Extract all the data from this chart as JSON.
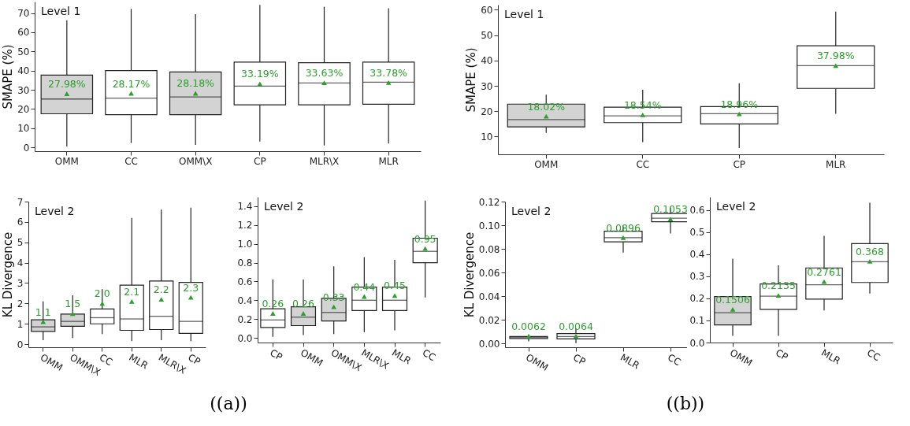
{
  "chart_data": [
    {
      "type": "box",
      "title": "Level 1",
      "ylabel": "SMAPE (%)",
      "categories": [
        "OMM",
        "CC",
        "OMM\\X",
        "CP",
        "MLR\\X",
        "MLR"
      ],
      "ylim": [
        -2,
        76
      ],
      "yticks": [
        0,
        10,
        20,
        30,
        40,
        50,
        60,
        70
      ],
      "annotations": [
        "((a))"
      ],
      "series": [
        {
          "colors": [
            "#d3d3d3",
            "#ffffff",
            "#d3d3d3",
            "#ffffff",
            "#ffffff",
            "#ffffff"
          ],
          "boxes": [
            {
              "low": 0.5,
              "q1": 17.5,
              "median": 25.2,
              "q3": 37.7,
              "high": 66.3
            },
            {
              "low": 2.3,
              "q1": 17,
              "median": 25.7,
              "q3": 40,
              "high": 72.2
            },
            {
              "low": 1.3,
              "q1": 17,
              "median": 26.3,
              "q3": 39.3,
              "high": 69.4
            },
            {
              "low": 3,
              "q1": 22.2,
              "median": 31.9,
              "q3": 44.4,
              "high": 74.3
            },
            {
              "low": 1,
              "q1": 22.2,
              "median": 33.6,
              "q3": 44.1,
              "high": 73.3
            },
            {
              "low": 2,
              "q1": 22.5,
              "median": 34,
              "q3": 44.4,
              "high": 72.5
            }
          ]
        },
        {
          "type": "scatter",
          "marker": "triangle",
          "color": "#2ca02c",
          "x": [
            "OMM",
            "CC",
            "OMM\\X",
            "CP",
            "MLR\\X",
            "MLR"
          ],
          "values": [
            27.98,
            28.17,
            28.18,
            33.19,
            33.63,
            33.78
          ],
          "value_labels": [
            "27.98%",
            "28.17%",
            "28.18%",
            "33.19%",
            "33.63%",
            "33.78%"
          ]
        }
      ]
    },
    {
      "type": "box",
      "title": "Level 2",
      "ylabel": "KL Divergence",
      "categories": [
        "OMM",
        "OMM\\X",
        "CC",
        "MLR",
        "MLR\\X",
        "CP"
      ],
      "ylim": [
        -0.15,
        7
      ],
      "yticks": [
        0,
        1,
        2,
        3,
        4,
        5,
        6,
        7
      ],
      "series": [
        {
          "colors": [
            "#d3d3d3",
            "#d3d3d3",
            "#ffffff",
            "#ffffff",
            "#ffffff",
            "#ffffff"
          ],
          "boxes": [
            {
              "low": 0.2,
              "q1": 0.63,
              "median": 0.85,
              "q3": 1.2,
              "high": 2.1
            },
            {
              "low": 0.3,
              "q1": 0.88,
              "median": 1.12,
              "q3": 1.48,
              "high": 2.4
            },
            {
              "low": 0.5,
              "q1": 1,
              "median": 1.3,
              "q3": 1.73,
              "high": 2.7
            },
            {
              "low": 0.15,
              "q1": 0.68,
              "median": 1.24,
              "q3": 2.9,
              "high": 6.2
            },
            {
              "low": 0.2,
              "q1": 0.72,
              "median": 1.37,
              "q3": 3.1,
              "high": 6.6
            },
            {
              "low": 0.15,
              "q1": 0.53,
              "median": 1.12,
              "q3": 3.03,
              "high": 6.7
            }
          ]
        },
        {
          "type": "scatter",
          "marker": "triangle",
          "color": "#2ca02c",
          "x": [
            "OMM",
            "OMM\\X",
            "CC",
            "MLR",
            "MLR\\X",
            "CP"
          ],
          "values": [
            1.1,
            1.5,
            2.0,
            2.1,
            2.2,
            2.3
          ],
          "value_labels": [
            "1.1",
            "1.5",
            "2.0",
            "2.1",
            "2.2",
            "2.3"
          ]
        }
      ]
    },
    {
      "type": "box",
      "title": "Level 2",
      "categories": [
        "CP",
        "OMM",
        "OMM\\X",
        "MLR\\X",
        "MLR",
        "CC"
      ],
      "ylim": [
        -0.05,
        1.5
      ],
      "yticks": [
        {
          "value": 0,
          "label": "0.0"
        },
        0.2,
        0.4,
        0.6,
        0.8,
        {
          "value": 1,
          "label": "1.0"
        },
        1.2,
        1.4
      ],
      "series": [
        {
          "colors": [
            "#ffffff",
            "#d3d3d3",
            "#d3d3d3",
            "#ffffff",
            "#ffffff",
            "#ffffff"
          ],
          "boxes": [
            {
              "low": 0.01,
              "q1": 0.11,
              "median": 0.19,
              "q3": 0.31,
              "high": 0.62
            },
            {
              "low": 0.03,
              "q1": 0.13,
              "median": 0.22,
              "q3": 0.33,
              "high": 0.62
            },
            {
              "low": 0.04,
              "q1": 0.18,
              "median": 0.27,
              "q3": 0.42,
              "high": 0.76
            },
            {
              "low": 0.06,
              "q1": 0.29,
              "median": 0.4,
              "q3": 0.54,
              "high": 0.86
            },
            {
              "low": 0.08,
              "q1": 0.29,
              "median": 0.4,
              "q3": 0.54,
              "high": 0.83
            },
            {
              "low": 0.43,
              "q1": 0.8,
              "median": 0.92,
              "q3": 1.06,
              "high": 1.46
            }
          ]
        },
        {
          "type": "scatter",
          "marker": "triangle",
          "color": "#2ca02c",
          "x": [
            "CP",
            "OMM",
            "OMM\\X",
            "MLR\\X",
            "MLR",
            "CC"
          ],
          "values": [
            0.26,
            0.26,
            0.33,
            0.44,
            0.45,
            0.95
          ],
          "value_labels": [
            "0.26",
            "0.26",
            "0.33",
            "0.44",
            "0.45",
            "0.95"
          ]
        }
      ]
    },
    {
      "type": "box",
      "title": "Level 1",
      "ylabel": "SMAPE (%)",
      "categories": [
        "OMM",
        "CC",
        "CP",
        "MLR"
      ],
      "ylim": [
        3,
        62
      ],
      "yticks": [
        10,
        20,
        30,
        40,
        50,
        60
      ],
      "annotations": [
        "((b))"
      ],
      "series": [
        {
          "colors": [
            "#d3d3d3",
            "#ffffff",
            "#ffffff",
            "#ffffff"
          ],
          "boxes": [
            {
              "low": 11.5,
              "q1": 13.8,
              "median": 16.7,
              "q3": 22.8,
              "high": 26.5
            },
            {
              "low": 7.8,
              "q1": 15.5,
              "median": 18.2,
              "q3": 21.6,
              "high": 28.5
            },
            {
              "low": 5.5,
              "q1": 15,
              "median": 19,
              "q3": 21.8,
              "high": 31
            },
            {
              "low": 19,
              "q1": 29,
              "median": 38,
              "q3": 45.8,
              "high": 59.3
            }
          ]
        },
        {
          "type": "scatter",
          "marker": "triangle",
          "color": "#2ca02c",
          "x": [
            "OMM",
            "CC",
            "CP",
            "MLR"
          ],
          "values": [
            18.02,
            18.54,
            18.96,
            37.98
          ],
          "value_labels": [
            "18.02%",
            "18.54%",
            "18.96%",
            "37.98%"
          ]
        }
      ]
    },
    {
      "type": "box",
      "title": "Level 2",
      "ylabel": "KL Divergence",
      "categories": [
        "OMM",
        "CP",
        "MLR",
        "CC"
      ],
      "ylim": [
        -0.003,
        0.12
      ],
      "yticks": [
        {
          "value": 0,
          "label": "0.00"
        },
        0.02,
        0.04,
        0.06,
        0.08,
        {
          "value": 0.1,
          "label": "0.10"
        },
        0.12
      ],
      "series": [
        {
          "colors": [
            "#d3d3d3",
            "#ffffff",
            "#ffffff",
            "#ffffff"
          ],
          "boxes": [
            {
              "low": 0.002,
              "q1": 0.0043,
              "median": 0.005,
              "q3": 0.006,
              "high": 0.0078
            },
            {
              "low": 0.0005,
              "q1": 0.004,
              "median": 0.006,
              "q3": 0.0085,
              "high": 0.013
            },
            {
              "low": 0.077,
              "q1": 0.086,
              "median": 0.0895,
              "q3": 0.095,
              "high": 0.099
            },
            {
              "low": 0.093,
              "q1": 0.103,
              "median": 0.106,
              "q3": 0.11,
              "high": 0.115
            }
          ]
        },
        {
          "type": "scatter",
          "marker": "triangle",
          "color": "#2ca02c",
          "x": [
            "OMM",
            "CP",
            "MLR",
            "CC"
          ],
          "values": [
            0.0062,
            0.0064,
            0.0896,
            0.1053
          ],
          "value_labels": [
            "0.0062",
            "0.0064",
            "0.0896",
            "0.1053"
          ]
        }
      ]
    },
    {
      "type": "box",
      "title": "Level 2",
      "categories": [
        "OMM",
        "CP",
        "MLR",
        "CC"
      ],
      "ylim": [
        0,
        0.66
      ],
      "yticks": [
        {
          "value": 0,
          "label": "0.0"
        },
        0.1,
        0.2,
        0.3,
        0.4,
        0.5,
        0.6
      ],
      "series": [
        {
          "colors": [
            "#d3d3d3",
            "#ffffff",
            "#ffffff",
            "#ffffff"
          ],
          "boxes": [
            {
              "low": 0.03,
              "q1": 0.08,
              "median": 0.135,
              "q3": 0.208,
              "high": 0.38
            },
            {
              "low": 0.03,
              "q1": 0.15,
              "median": 0.21,
              "q3": 0.265,
              "high": 0.35
            },
            {
              "low": 0.145,
              "q1": 0.197,
              "median": 0.262,
              "q3": 0.338,
              "high": 0.483
            },
            {
              "low": 0.222,
              "q1": 0.272,
              "median": 0.366,
              "q3": 0.448,
              "high": 0.633
            }
          ]
        },
        {
          "type": "scatter",
          "marker": "triangle",
          "color": "#2ca02c",
          "x": [
            "OMM",
            "CP",
            "MLR",
            "CC"
          ],
          "values": [
            0.1506,
            0.2135,
            0.2761,
            0.368
          ],
          "value_labels": [
            "0.1506",
            "0.2135",
            "0.2761",
            "0.368"
          ]
        }
      ]
    }
  ]
}
